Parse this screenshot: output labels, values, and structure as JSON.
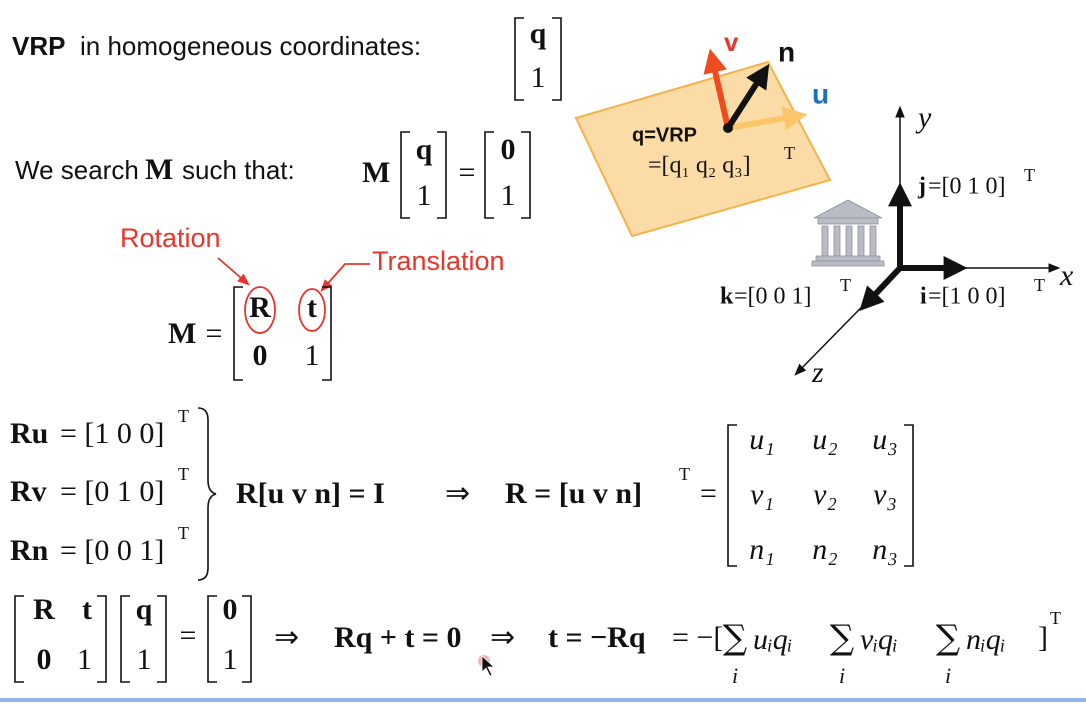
{
  "header": {
    "vrp_label": "VRP",
    "vrp_text": "in homogeneous coordinates:",
    "vrp_vector": [
      "q",
      "1"
    ]
  },
  "search": {
    "text_start": "We search",
    "symbol": "M",
    "text_end": "such that:",
    "lhs": "M",
    "vector": [
      "q",
      "1"
    ],
    "equals": "=",
    "result": [
      "0",
      "1"
    ]
  },
  "callouts": {
    "rotation": "Rotation",
    "translation": "Translation"
  },
  "m_definition": {
    "lhs": "M",
    "equals": "=",
    "matrix": [
      [
        "R",
        "t"
      ],
      [
        "0",
        "1"
      ]
    ]
  },
  "constraints": [
    {
      "lhs": "Ru",
      "rhs": "= [1 0 0]",
      "transpose": "T"
    },
    {
      "lhs": "Rv",
      "rhs": "= [0 1 0]",
      "transpose": "T"
    },
    {
      "lhs": "Rn",
      "rhs": "= [0 0 1]",
      "transpose": "T"
    }
  ],
  "derivation": {
    "step1": "R[u  v  n] = I",
    "implies": "⇒",
    "step2": "R = [u  v  n]",
    "transpose": "T",
    "equals": "=",
    "matrix": [
      [
        "u₁",
        "u₂",
        "u₃"
      ],
      [
        "v₁",
        "v₂",
        "v₃"
      ],
      [
        "n₁",
        "n₂",
        "n₃"
      ]
    ]
  },
  "translation_eq": {
    "matrix": [
      [
        "R",
        "t"
      ],
      [
        "0",
        "1"
      ]
    ],
    "vector": [
      "q",
      "1"
    ],
    "equals": "=",
    "result": [
      "0",
      "1"
    ],
    "implies_1": "⇒",
    "equation": "Rq + t = 0",
    "implies_2": "⇒",
    "solution": "t = −Rq",
    "expansion": "= −[",
    "sums": [
      {
        "sigma": "∑",
        "index": "i",
        "term": "uᵢqᵢ"
      },
      {
        "sigma": "∑",
        "index": "i",
        "term": "vᵢqᵢ"
      },
      {
        "sigma": "∑",
        "index": "i",
        "term": "nᵢqᵢ"
      }
    ],
    "close": "]",
    "transpose": "T"
  },
  "diagram": {
    "plane": {
      "v": "v",
      "n": "n",
      "u": "u",
      "point": "q=VRP",
      "point_coords": "=[q₁ q₂ q₃]",
      "transpose": "T"
    },
    "axes": {
      "y": "y",
      "x": "x",
      "z": "z",
      "j": {
        "name": "j",
        "value": "=[0 1 0]",
        "transpose": "T"
      },
      "i": {
        "name": "i",
        "value": "=[1 0 0]",
        "transpose": "T"
      },
      "k": {
        "name": "k",
        "value": "=[0 0 1]",
        "transpose": "T"
      }
    }
  }
}
